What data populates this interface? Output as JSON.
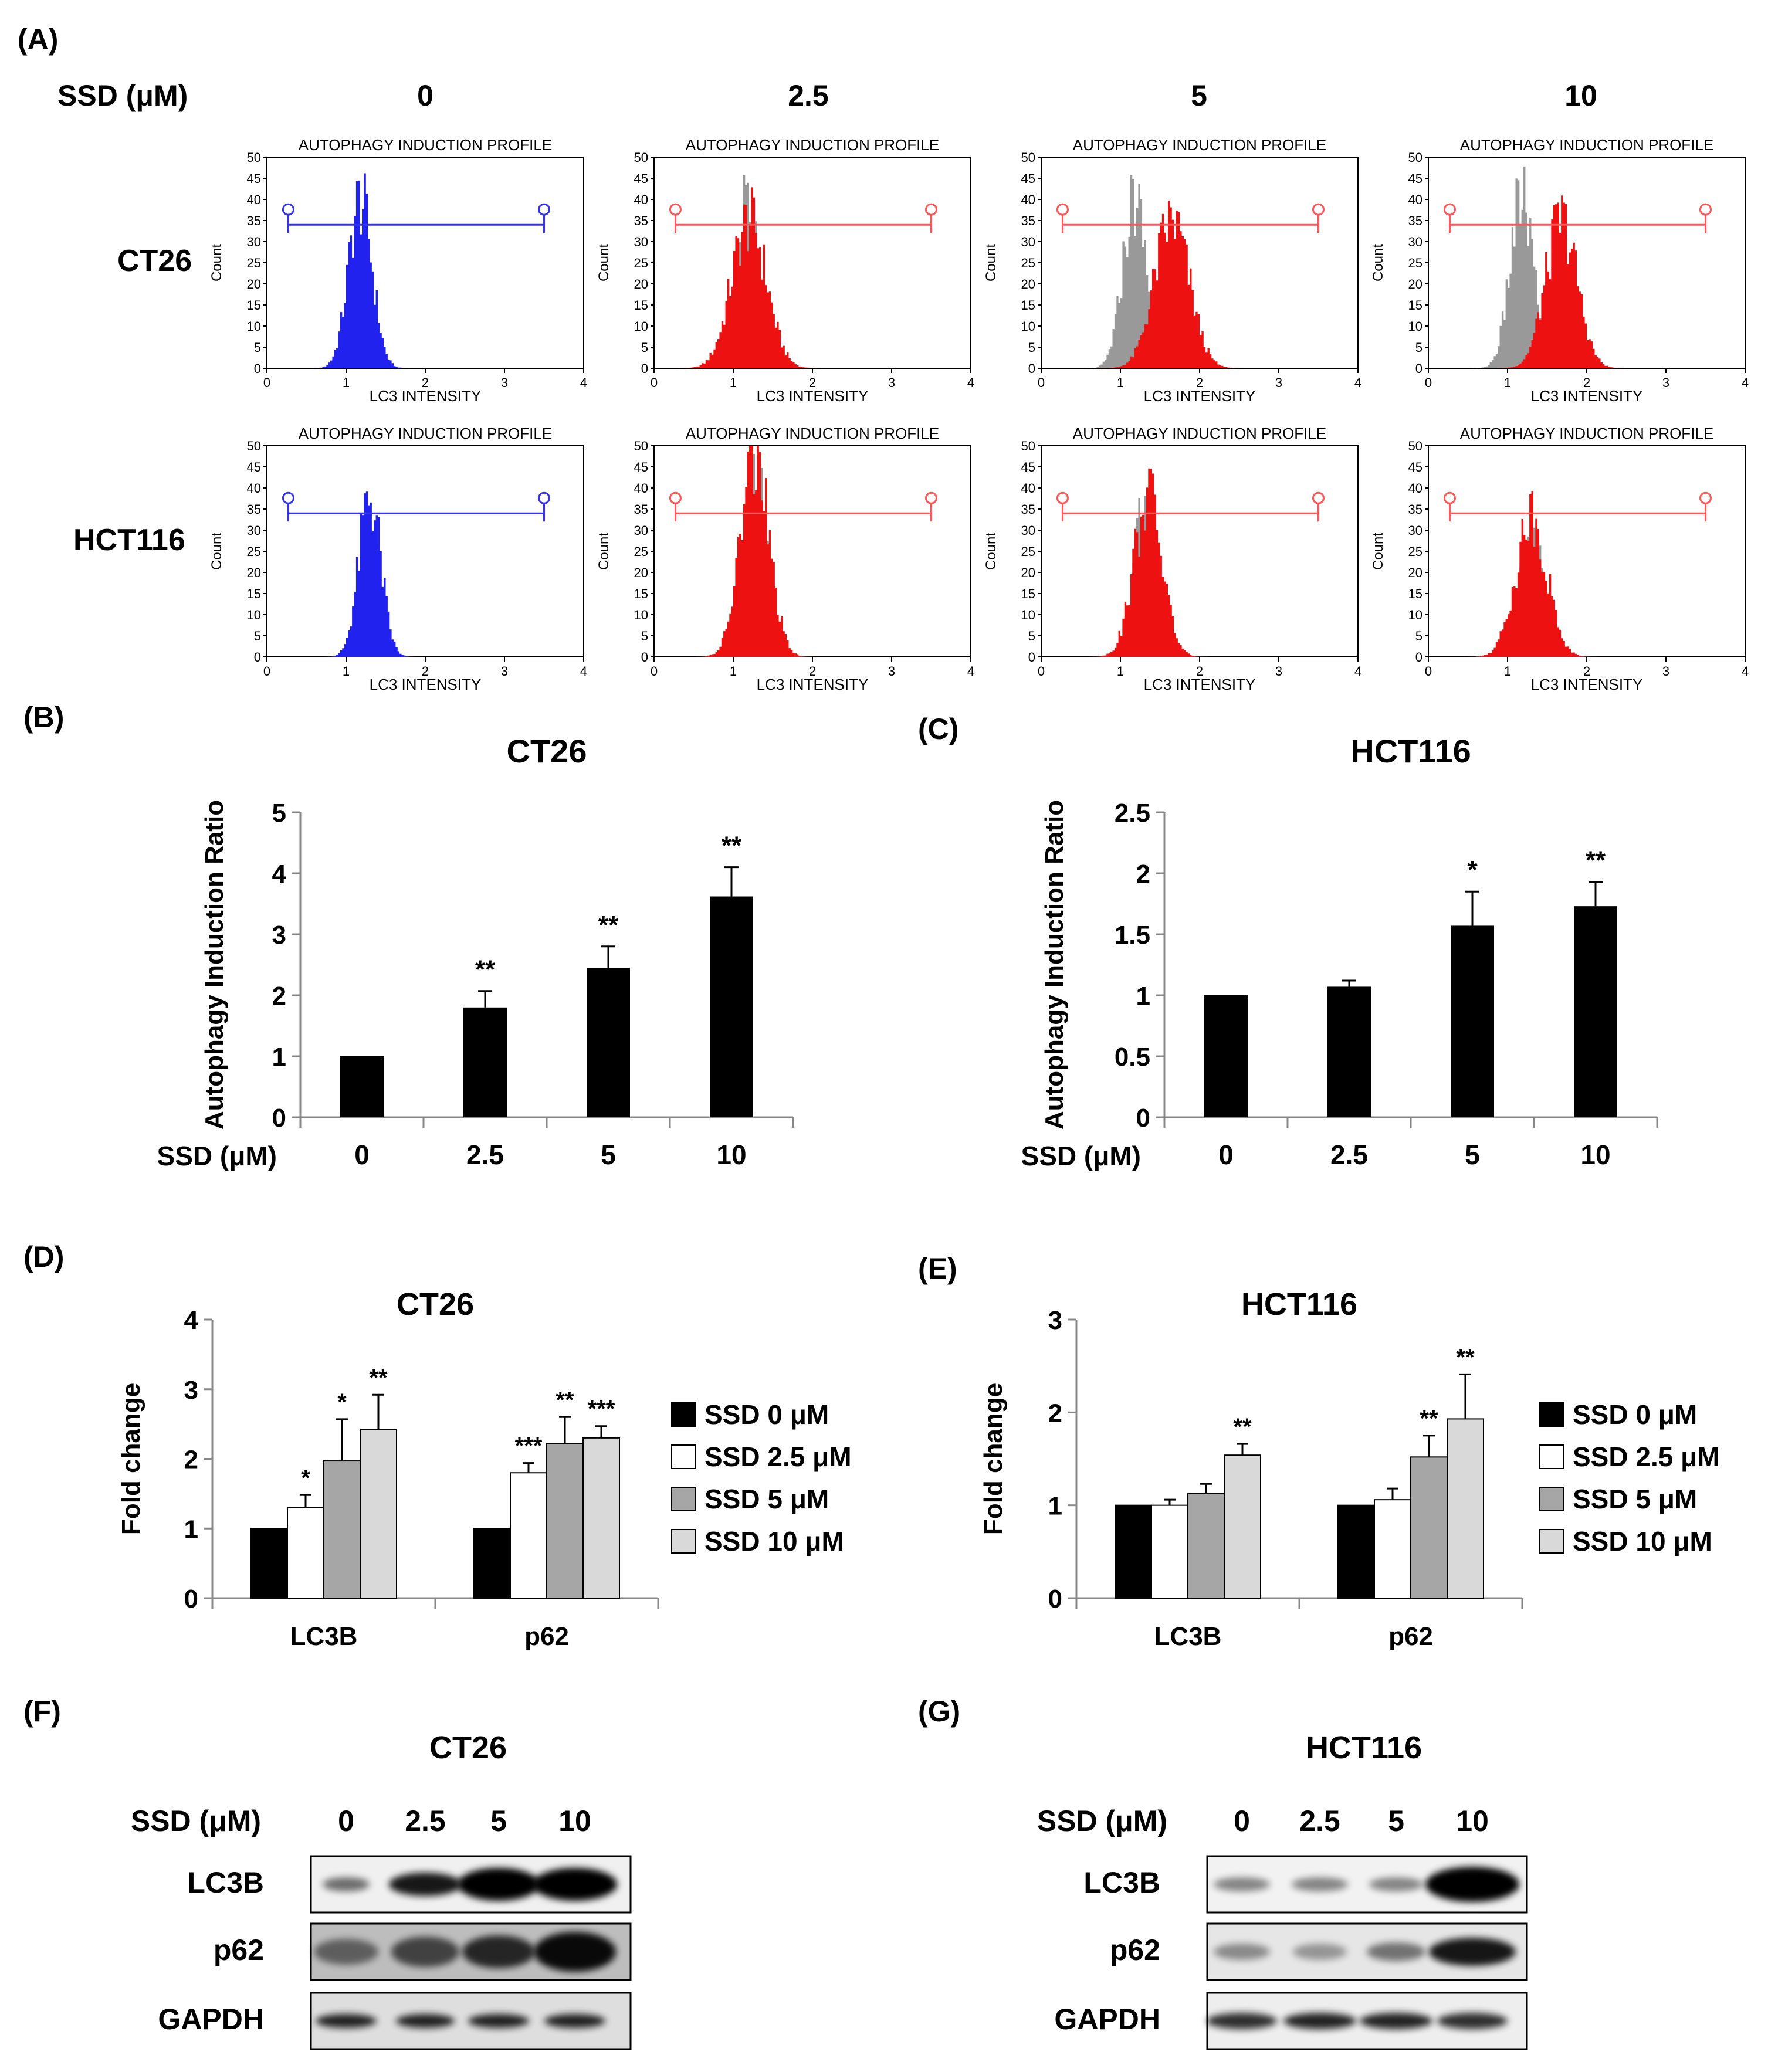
{
  "figure": {
    "labels": {
      "A": "(A)",
      "B": "(B)",
      "C": "(C)",
      "D": "(D)",
      "E": "(E)",
      "F": "(F)",
      "G": "(G)"
    },
    "ssd_label": "SSD  (μM)",
    "ssd_label_bc": "SSD (μM)",
    "concentrations": [
      "0",
      "2.5",
      "5",
      "10"
    ],
    "cell_lines": [
      "CT26",
      "HCT116"
    ]
  },
  "histograms": {
    "panel_title": "AUTOPHAGY INDUCTION PROFILE",
    "x_label": "LC3 INTENSITY",
    "y_label": "Count",
    "x_ticks": [
      "0",
      "1",
      "2",
      "3",
      "4"
    ],
    "y_ticks": [
      "0",
      "5",
      "10",
      "15",
      "20",
      "25",
      "30",
      "35",
      "40",
      "45",
      "50"
    ],
    "colors": {
      "control": "#2222ee",
      "treated": "#ee1111",
      "reference": "#999999",
      "gate_control": "#3333ee",
      "gate_treated": "#ff5555"
    }
  },
  "chart_data": [
    {
      "id": "B",
      "type": "bar",
      "title": "CT26",
      "ylabel": "Autophagy Induction Ratio",
      "xlabel": "SSD (μM)",
      "categories": [
        "0",
        "2.5",
        "5",
        "10"
      ],
      "values": [
        1.0,
        1.8,
        2.45,
        3.62
      ],
      "errors": [
        0.0,
        0.27,
        0.35,
        0.48
      ],
      "significance": [
        "",
        "**",
        "**",
        "**"
      ],
      "ylim": [
        0,
        5
      ],
      "yticks": [
        "0",
        "1",
        "2",
        "3",
        "4",
        "5"
      ],
      "color": "#000000"
    },
    {
      "id": "C",
      "type": "bar",
      "title": "HCT116",
      "ylabel": "Autophagy Induction Ratio",
      "xlabel": "SSD (μM)",
      "categories": [
        "0",
        "2.5",
        "5",
        "10"
      ],
      "values": [
        1.0,
        1.07,
        1.57,
        1.73
      ],
      "errors": [
        0.0,
        0.05,
        0.28,
        0.2
      ],
      "significance": [
        "",
        "",
        "*",
        "**"
      ],
      "ylim": [
        0,
        2.5
      ],
      "yticks": [
        "0",
        "0.5",
        "1",
        "1.5",
        "2",
        "2.5"
      ],
      "color": "#000000"
    },
    {
      "id": "D",
      "type": "bar",
      "title": "CT26",
      "ylabel": "Fold change",
      "categories": [
        "LC3B",
        "p62"
      ],
      "ylim": [
        0,
        4
      ],
      "yticks": [
        "0",
        "1",
        "2",
        "3",
        "4"
      ],
      "series": [
        {
          "name": "SSD 0 μM",
          "color": "#000000",
          "values": [
            1.0,
            1.0
          ],
          "errors": [
            0,
            0
          ],
          "significance": [
            "",
            ""
          ]
        },
        {
          "name": "SSD 2.5 μM",
          "color": "#ffffff",
          "values": [
            1.3,
            1.8
          ],
          "errors": [
            0.18,
            0.14
          ],
          "significance": [
            "*",
            "***"
          ]
        },
        {
          "name": "SSD 5 μM",
          "color": "#a6a6a6",
          "values": [
            1.97,
            2.22
          ],
          "errors": [
            0.6,
            0.38
          ],
          "significance": [
            "*",
            "**"
          ]
        },
        {
          "name": "SSD 10 μM",
          "color": "#d9d9d9",
          "values": [
            2.42,
            2.3
          ],
          "errors": [
            0.5,
            0.17
          ],
          "significance": [
            "**",
            "***"
          ]
        }
      ]
    },
    {
      "id": "E",
      "type": "bar",
      "title": "HCT116",
      "ylabel": "Fold change",
      "categories": [
        "LC3B",
        "p62"
      ],
      "ylim": [
        0,
        3
      ],
      "yticks": [
        "0",
        "1",
        "2",
        "3"
      ],
      "series": [
        {
          "name": "SSD 0 μM",
          "color": "#000000",
          "values": [
            1.0,
            1.0
          ],
          "errors": [
            0,
            0
          ],
          "significance": [
            "",
            ""
          ]
        },
        {
          "name": "SSD 2.5 μM",
          "color": "#ffffff",
          "values": [
            1.0,
            1.06
          ],
          "errors": [
            0.06,
            0.12
          ],
          "significance": [
            "",
            ""
          ]
        },
        {
          "name": "SSD 5 μM",
          "color": "#a6a6a6",
          "values": [
            1.13,
            1.52
          ],
          "errors": [
            0.1,
            0.23
          ],
          "significance": [
            "",
            "**"
          ]
        },
        {
          "name": "SSD 10 μM",
          "color": "#d9d9d9",
          "values": [
            1.54,
            1.93
          ],
          "errors": [
            0.12,
            0.48
          ],
          "significance": [
            "**",
            "**"
          ]
        }
      ]
    }
  ],
  "western": {
    "F": {
      "title": "CT26",
      "rows": [
        "LC3B",
        "p62",
        "GAPDH"
      ],
      "lanes": [
        "0",
        "2.5",
        "5",
        "10"
      ]
    },
    "G": {
      "title": "HCT116",
      "rows": [
        "LC3B",
        "p62",
        "GAPDH"
      ],
      "lanes": [
        "0",
        "2.5",
        "5",
        "10"
      ]
    }
  }
}
